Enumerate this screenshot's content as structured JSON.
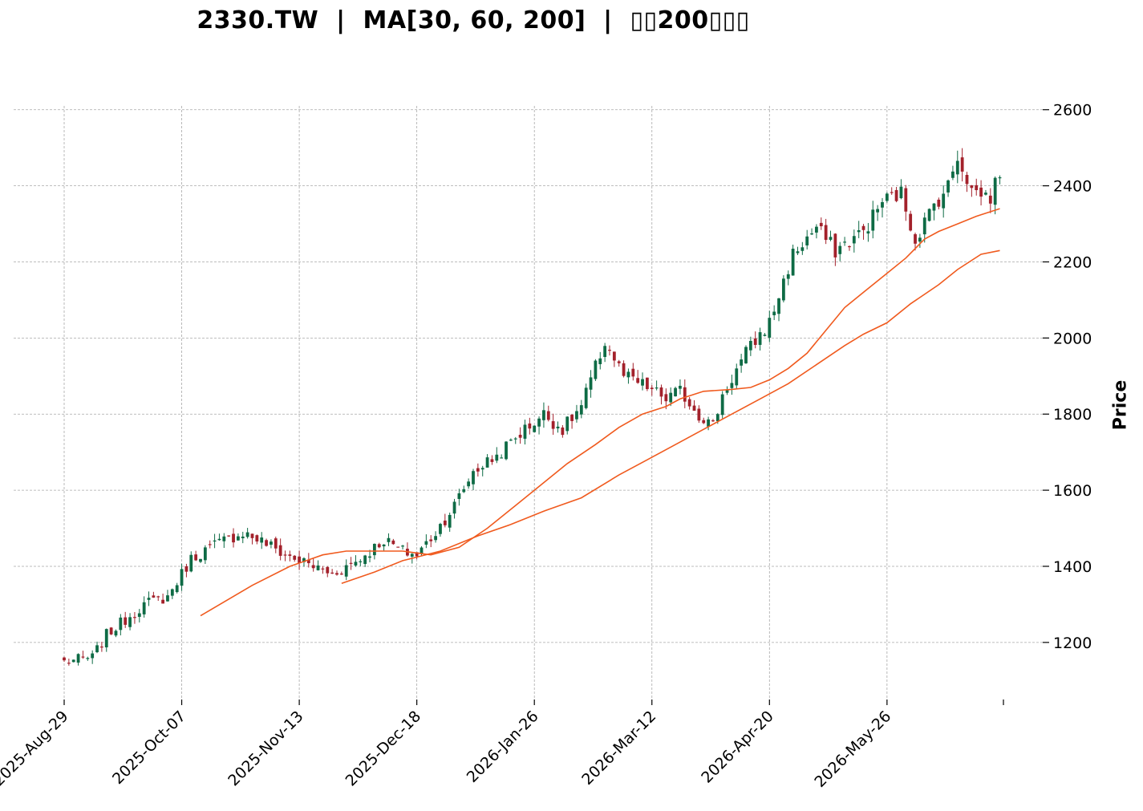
{
  "title": "2330.TW  |  MA[30, 60, 200]  |  ▯▯200▯▯▯",
  "chart_data": {
    "type": "candlestick",
    "ylabel": "Price",
    "ylim": [
      1050,
      2610
    ],
    "yticks": [
      1200,
      1400,
      1600,
      1800,
      2000,
      2200,
      2400,
      2600
    ],
    "xtick_labels": [
      "2025-Aug-29",
      "2025-Oct-07",
      "2025-Nov-13",
      "2025-Dec-18",
      "2026-Jan-26",
      "2026-Mar-12",
      "2026-Apr-20",
      "2026-May-26"
    ],
    "xtick_index": [
      0,
      25,
      50,
      75,
      100,
      125,
      150,
      175
    ],
    "up_color": "#0e6b45",
    "down_color": "#a3212b",
    "ma_color": "#f05a1e",
    "grid": true,
    "anchors": [
      [
        0,
        1150
      ],
      [
        6,
        1160
      ],
      [
        9,
        1220
      ],
      [
        17,
        1300
      ],
      [
        22,
        1320
      ],
      [
        27,
        1420
      ],
      [
        31,
        1450
      ],
      [
        38,
        1490
      ],
      [
        43,
        1460
      ],
      [
        47,
        1430
      ],
      [
        51,
        1410
      ],
      [
        57,
        1380
      ],
      [
        63,
        1420
      ],
      [
        68,
        1470
      ],
      [
        72,
        1440
      ],
      [
        75,
        1430
      ],
      [
        79,
        1490
      ],
      [
        83,
        1560
      ],
      [
        87,
        1650
      ],
      [
        92,
        1690
      ],
      [
        97,
        1750
      ],
      [
        102,
        1800
      ],
      [
        106,
        1760
      ],
      [
        110,
        1820
      ],
      [
        115,
        1990
      ],
      [
        119,
        1900
      ],
      [
        124,
        1870
      ],
      [
        128,
        1840
      ],
      [
        131,
        1860
      ],
      [
        135,
        1800
      ],
      [
        138,
        1770
      ],
      [
        140,
        1850
      ],
      [
        145,
        1960
      ],
      [
        150,
        2040
      ],
      [
        155,
        2220
      ],
      [
        160,
        2290
      ],
      [
        164,
        2230
      ],
      [
        170,
        2280
      ],
      [
        174,
        2360
      ],
      [
        178,
        2380
      ],
      [
        181,
        2260
      ],
      [
        185,
        2350
      ],
      [
        188,
        2400
      ],
      [
        190,
        2480
      ],
      [
        193,
        2390
      ],
      [
        197,
        2370
      ],
      [
        199,
        2440
      ]
    ],
    "ma30": [
      [
        29,
        1270
      ],
      [
        40,
        1350
      ],
      [
        48,
        1400
      ],
      [
        55,
        1430
      ],
      [
        60,
        1440
      ],
      [
        72,
        1440
      ],
      [
        78,
        1430
      ],
      [
        84,
        1450
      ],
      [
        90,
        1500
      ],
      [
        96,
        1560
      ],
      [
        101,
        1610
      ],
      [
        107,
        1670
      ],
      [
        113,
        1720
      ],
      [
        118,
        1765
      ],
      [
        123,
        1800
      ],
      [
        128,
        1820
      ],
      [
        131,
        1840
      ],
      [
        136,
        1860
      ],
      [
        142,
        1865
      ],
      [
        146,
        1870
      ],
      [
        150,
        1890
      ],
      [
        154,
        1920
      ],
      [
        158,
        1960
      ],
      [
        162,
        2020
      ],
      [
        166,
        2080
      ],
      [
        170,
        2120
      ],
      [
        175,
        2170
      ],
      [
        179,
        2210
      ],
      [
        183,
        2260
      ],
      [
        186,
        2280
      ],
      [
        190,
        2300
      ],
      [
        194,
        2320
      ],
      [
        199,
        2340
      ]
    ],
    "ma60": [
      [
        59,
        1355
      ],
      [
        66,
        1385
      ],
      [
        72,
        1415
      ],
      [
        80,
        1440
      ],
      [
        88,
        1480
      ],
      [
        95,
        1510
      ],
      [
        102,
        1545
      ],
      [
        110,
        1580
      ],
      [
        118,
        1640
      ],
      [
        124,
        1680
      ],
      [
        130,
        1720
      ],
      [
        136,
        1760
      ],
      [
        142,
        1800
      ],
      [
        148,
        1840
      ],
      [
        154,
        1880
      ],
      [
        160,
        1930
      ],
      [
        166,
        1980
      ],
      [
        170,
        2010
      ],
      [
        175,
        2040
      ],
      [
        180,
        2090
      ],
      [
        186,
        2140
      ],
      [
        190,
        2180
      ],
      [
        195,
        2220
      ],
      [
        199,
        2230
      ]
    ]
  }
}
